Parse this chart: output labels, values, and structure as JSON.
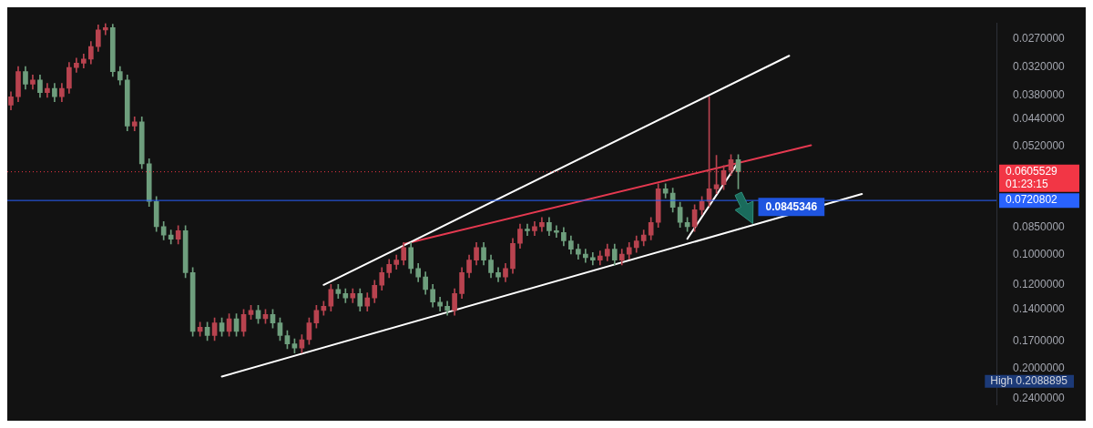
{
  "chart_data": {
    "type": "candlestick",
    "log": "y",
    "tick_labels": "y",
    "grid": false,
    "legend": false,
    "categories": [
      null,
      null,
      null,
      null,
      null,
      null,
      null,
      null,
      null,
      null,
      null,
      null,
      null,
      null,
      null,
      null,
      null,
      null,
      null,
      null,
      null,
      null,
      null,
      null,
      null,
      null,
      null,
      null,
      null,
      null,
      null,
      null,
      null,
      null,
      null,
      null,
      null,
      null,
      null,
      null,
      null,
      null,
      null,
      null,
      null,
      null,
      null,
      null,
      null,
      null,
      null,
      null,
      null,
      null,
      null,
      null,
      null,
      null,
      null,
      null,
      null,
      null,
      null,
      null,
      null,
      null,
      null,
      null,
      null,
      null,
      null,
      null,
      null,
      null,
      null,
      null,
      null,
      null,
      null,
      null,
      null,
      null,
      null,
      null,
      null,
      null,
      null,
      null,
      null,
      null,
      null,
      null,
      null,
      null,
      null,
      null,
      null,
      null,
      null,
      null,
      null,
      null,
      null,
      null,
      null,
      null,
      null,
      null,
      null,
      null,
      null,
      null,
      null,
      null,
      null,
      null,
      null,
      null,
      null,
      null,
      null,
      null,
      null,
      null,
      null,
      null,
      null,
      null,
      null,
      null,
      null,
      null,
      null,
      null,
      null,
      null
    ],
    "ylim": [
      0.25,
      0.0245
    ],
    "yticks": [
      {
        "value": 0.027,
        "label": "0.0270000"
      },
      {
        "value": 0.032,
        "label": "0.0320000"
      },
      {
        "value": 0.038,
        "label": "0.0380000"
      },
      {
        "value": 0.044,
        "label": "0.0440000"
      },
      {
        "value": 0.052,
        "label": "0.0520000"
      },
      {
        "value": 0.085,
        "label": "0.0850000"
      },
      {
        "value": 0.1,
        "label": "0.1000000"
      },
      {
        "value": 0.12,
        "label": "0.1200000"
      },
      {
        "value": 0.14,
        "label": "0.1400000"
      },
      {
        "value": 0.17,
        "label": "0.1700000"
      },
      {
        "value": 0.2,
        "label": "0.2000000"
      },
      {
        "value": 0.24,
        "label": "0.2400000"
      }
    ],
    "ohlc": [
      [
        0.04037,
        0.04158,
        0.03722,
        0.03837
      ],
      [
        0.03837,
        0.03952,
        0.03194,
        0.03293
      ],
      [
        0.03293,
        0.03662,
        0.03194,
        0.03555
      ],
      [
        0.03555,
        0.03662,
        0.03361,
        0.03465
      ],
      [
        0.03465,
        0.03853,
        0.03361,
        0.03741
      ],
      [
        0.03741,
        0.03853,
        0.03537,
        0.03646
      ],
      [
        0.03646,
        0.03952,
        0.03537,
        0.03837
      ],
      [
        0.03837,
        0.03952,
        0.03537,
        0.03646
      ],
      [
        0.03646,
        0.03755,
        0.03115,
        0.03211
      ],
      [
        0.03211,
        0.03307,
        0.03036,
        0.0313
      ],
      [
        0.0313,
        0.03224,
        0.02959,
        0.03051
      ],
      [
        0.03051,
        0.03143,
        0.02742,
        0.02827
      ],
      [
        0.02827,
        0.02912,
        0.02479,
        0.02556
      ],
      [
        0.02556,
        0.02633,
        0.0246,
        0.0252
      ],
      [
        0.0252,
        0.03392,
        0.0247,
        0.03293
      ],
      [
        0.03293,
        0.03569,
        0.03194,
        0.03465
      ],
      [
        0.03465,
        0.04723,
        0.03361,
        0.04585
      ],
      [
        0.04585,
        0.04723,
        0.04336,
        0.0447
      ],
      [
        0.0447,
        0.0594,
        0.04336,
        0.05767
      ],
      [
        0.05767,
        0.07471,
        0.05594,
        0.07253
      ],
      [
        0.07253,
        0.08702,
        0.07035,
        0.08449
      ],
      [
        0.08449,
        0.09159,
        0.08196,
        0.08892
      ],
      [
        0.08892,
        0.09394,
        0.08625,
        0.0912
      ],
      [
        0.0912,
        0.09394,
        0.08407,
        0.08667
      ],
      [
        0.08667,
        0.1152,
        0.08407,
        0.1118
      ],
      [
        0.1118,
        0.1645,
        0.1084,
        0.1597
      ],
      [
        0.1597,
        0.1645,
        0.151,
        0.1557
      ],
      [
        0.1557,
        0.1688,
        0.151,
        0.1639
      ],
      [
        0.1639,
        0.1688,
        0.1472,
        0.1518
      ],
      [
        0.1518,
        0.1645,
        0.1472,
        0.1597
      ],
      [
        0.1597,
        0.1645,
        0.1435,
        0.1479
      ],
      [
        0.1479,
        0.1645,
        0.1435,
        0.1597
      ],
      [
        0.1597,
        0.1645,
        0.1399,
        0.1442
      ],
      [
        0.1442,
        0.1485,
        0.1364,
        0.1406
      ],
      [
        0.1406,
        0.1523,
        0.1364,
        0.1479
      ],
      [
        0.1479,
        0.1523,
        0.1399,
        0.1442
      ],
      [
        0.1442,
        0.1564,
        0.1399,
        0.1518
      ],
      [
        0.1518,
        0.1688,
        0.1472,
        0.1639
      ],
      [
        0.1639,
        0.1776,
        0.159,
        0.1724
      ],
      [
        0.1724,
        0.1821,
        0.1672,
        0.1768
      ],
      [
        0.1768,
        0.1821,
        0.163,
        0.168
      ],
      [
        0.168,
        0.173,
        0.1472,
        0.1518
      ],
      [
        0.1518,
        0.1564,
        0.1364,
        0.1406
      ],
      [
        0.1406,
        0.1448,
        0.133,
        0.1371
      ],
      [
        0.1371,
        0.1412,
        0.1201,
        0.1238
      ],
      [
        0.1238,
        0.1308,
        0.1201,
        0.127
      ],
      [
        0.127,
        0.1342,
        0.1232,
        0.1303
      ],
      [
        0.1303,
        0.1342,
        0.1232,
        0.127
      ],
      [
        0.127,
        0.1412,
        0.1232,
        0.1371
      ],
      [
        0.1371,
        0.1412,
        0.1264,
        0.1303
      ],
      [
        0.1303,
        0.1342,
        0.1171,
        0.1207
      ],
      [
        0.1207,
        0.1243,
        0.1084,
        0.1118
      ],
      [
        0.1118,
        0.1152,
        0.1031,
        0.1063
      ],
      [
        0.1063,
        0.1095,
        0.1005,
        0.1036
      ],
      [
        0.1036,
        0.1067,
        0.09309,
        0.09597
      ],
      [
        0.09597,
        0.1123,
        0.09309,
        0.109
      ],
      [
        0.109,
        0.1181,
        0.1057,
        0.1147
      ],
      [
        0.1147,
        0.1275,
        0.1113,
        0.1238
      ],
      [
        0.1238,
        0.1377,
        0.1201,
        0.1337
      ],
      [
        0.1337,
        0.1412,
        0.1297,
        0.1371
      ],
      [
        0.1371,
        0.1448,
        0.133,
        0.1406
      ],
      [
        0.1406,
        0.1448,
        0.1232,
        0.127
      ],
      [
        0.127,
        0.1308,
        0.1084,
        0.1118
      ],
      [
        0.1118,
        0.1152,
        0.1005,
        0.1036
      ],
      [
        0.1036,
        0.1067,
        0.09309,
        0.09597
      ],
      [
        0.09597,
        0.1067,
        0.09309,
        0.1036
      ],
      [
        0.1036,
        0.1152,
        0.1005,
        0.1118
      ],
      [
        0.1118,
        0.1181,
        0.1084,
        0.1147
      ],
      [
        0.1147,
        0.1181,
        0.1057,
        0.109
      ],
      [
        0.109,
        0.1123,
        0.09075,
        0.09356
      ],
      [
        0.09356,
        0.09637,
        0.08322,
        0.08579
      ],
      [
        0.08579,
        0.08927,
        0.08322,
        0.08667
      ],
      [
        0.08667,
        0.08927,
        0.08196,
        0.08449
      ],
      [
        0.08449,
        0.08702,
        0.0799,
        0.08237
      ],
      [
        0.08237,
        0.08927,
        0.0799,
        0.08667
      ],
      [
        0.08667,
        0.09019,
        0.08407,
        0.08756
      ],
      [
        0.08756,
        0.0949,
        0.08493,
        0.09214
      ],
      [
        0.09214,
        0.09987,
        0.08938,
        0.09696
      ],
      [
        0.09696,
        0.103,
        0.09405,
        0.09996
      ],
      [
        0.09996,
        0.1051,
        0.09696,
        0.102
      ],
      [
        0.102,
        0.1067,
        0.09894,
        0.1036
      ],
      [
        0.1036,
        0.1067,
        0.09797,
        0.101
      ],
      [
        0.101,
        0.104,
        0.09405,
        0.09696
      ],
      [
        0.09696,
        0.1067,
        0.09405,
        0.1036
      ],
      [
        0.1036,
        0.1067,
        0.09696,
        0.09996
      ],
      [
        0.09996,
        0.103,
        0.09309,
        0.09597
      ],
      [
        0.09597,
        0.09885,
        0.08938,
        0.09214
      ],
      [
        0.09214,
        0.0949,
        0.08625,
        0.08892
      ],
      [
        0.08892,
        0.09159,
        0.0799,
        0.08237
      ],
      [
        0.08237,
        0.08484,
        0.06516,
        0.06718
      ],
      [
        0.06718,
        0.071,
        0.06516,
        0.06893
      ],
      [
        0.06893,
        0.0774,
        0.06686,
        0.07515
      ],
      [
        0.07515,
        0.08484,
        0.0729,
        0.08237
      ],
      [
        0.08237,
        0.08702,
        0.0799,
        0.08449
      ],
      [
        0.08449,
        0.08702,
        0.07402,
        0.07631
      ],
      [
        0.07631,
        0.0786,
        0.07035,
        0.07253
      ],
      [
        0.07253,
        0.07471,
        0.03837,
        0.06718
      ],
      [
        0.06718,
        0.06919,
        0.0548,
        0.06546
      ],
      [
        0.06546,
        0.06742,
        0.05829,
        0.06009
      ],
      [
        0.06009,
        0.06189,
        0.05458,
        0.05627
      ],
      [
        0.05627,
        0.06718,
        0.05458,
        0.06055
      ],
      null,
      null,
      null,
      null,
      null,
      null,
      null,
      null,
      null,
      null,
      null,
      null,
      null,
      null,
      null,
      null,
      null,
      null,
      null,
      null,
      null,
      null,
      null,
      null,
      null,
      null,
      null,
      null,
      null,
      null,
      null,
      null,
      null,
      null,
      null
    ],
    "colors": [
      "#b8434f",
      "#b8434f",
      "#6e9e7d",
      "#b8434f",
      "#6e9e7d",
      "#b8434f",
      "#6e9e7d",
      "#b8434f",
      "#b8434f",
      "#b8434f",
      "#b8434f",
      "#b8434f",
      "#b8434f",
      "#b8434f",
      "#6e9e7d",
      "#6e9e7d",
      "#6e9e7d",
      "#b8434f",
      "#6e9e7d",
      "#6e9e7d",
      "#6e9e7d",
      "#6e9e7d",
      "#6e9e7d",
      "#b8434f",
      "#6e9e7d",
      "#6e9e7d",
      "#b8434f",
      "#6e9e7d",
      "#b8434f",
      "#6e9e7d",
      "#b8434f",
      "#6e9e7d",
      "#b8434f",
      "#b8434f",
      "#6e9e7d",
      "#b8434f",
      "#6e9e7d",
      "#6e9e7d",
      "#6e9e7d",
      "#6e9e7d",
      "#b8434f",
      "#b8434f",
      "#b8434f",
      "#b8434f",
      "#b8434f",
      "#6e9e7d",
      "#6e9e7d",
      "#b8434f",
      "#6e9e7d",
      "#b8434f",
      "#b8434f",
      "#b8434f",
      "#b8434f",
      "#b8434f",
      "#b8434f",
      "#6e9e7d",
      "#6e9e7d",
      "#6e9e7d",
      "#6e9e7d",
      "#6e9e7d",
      "#6e9e7d",
      "#b8434f",
      "#b8434f",
      "#b8434f",
      "#b8434f",
      "#6e9e7d",
      "#6e9e7d",
      "#6e9e7d",
      "#b8434f",
      "#b8434f",
      "#b8434f",
      "#6e9e7d",
      "#b8434f",
      "#b8434f",
      "#6e9e7d",
      "#6e9e7d",
      "#6e9e7d",
      "#6e9e7d",
      "#6e9e7d",
      "#6e9e7d",
      "#6e9e7d",
      "#b8434f",
      "#b8434f",
      "#6e9e7d",
      "#b8434f",
      "#b8434f",
      "#b8434f",
      "#b8434f",
      "#b8434f",
      "#b8434f",
      "#6e9e7d",
      "#6e9e7d",
      "#6e9e7d",
      "#6e9e7d",
      "#b8434f",
      "#b8434f",
      "#b8434f",
      "#b8434f",
      "#b8434f",
      "#b8434f",
      "#6e9e7d",
      null,
      null,
      null,
      null,
      null,
      null,
      null,
      null,
      null,
      null,
      null,
      null,
      null,
      null,
      null,
      null,
      null,
      null,
      null,
      null,
      null,
      null,
      null,
      null,
      null,
      null,
      null,
      null,
      null,
      null,
      null,
      null,
      null,
      null,
      null
    ],
    "series": [
      {
        "type": "line",
        "color": "#ffffff",
        "values": [
          null,
          null,
          null,
          null,
          null,
          null,
          null,
          null,
          null,
          null,
          null,
          null,
          null,
          null,
          null,
          null,
          null,
          null,
          null,
          null,
          null,
          null,
          null,
          null,
          null,
          null,
          null,
          null,
          null,
          0.2102,
          null,
          null,
          null,
          null,
          null,
          null,
          null,
          null,
          null,
          null,
          null,
          null,
          null,
          null,
          null,
          null,
          null,
          null,
          null,
          null,
          null,
          null,
          null,
          null,
          null,
          null,
          null,
          null,
          null,
          null,
          null,
          null,
          null,
          null,
          null,
          null,
          null,
          null,
          null,
          null,
          null,
          null,
          null,
          null,
          null,
          null,
          null,
          null,
          null,
          null,
          null,
          null,
          null,
          null,
          null,
          null,
          null,
          null,
          null,
          null,
          null,
          null,
          null,
          null,
          null,
          null,
          null,
          null,
          null,
          null,
          null,
          null,
          null,
          null,
          null,
          null,
          null,
          null,
          null,
          null,
          null,
          null,
          null,
          null,
          null,
          null,
          null,
          0.06931,
          null,
          null,
          null,
          null,
          null,
          null,
          null,
          null,
          null,
          null,
          null,
          null,
          null,
          null,
          null,
          null,
          null,
          null
        ]
      },
      {
        "type": "line",
        "color": "#ffffff",
        "values": [
          null,
          null,
          null,
          null,
          null,
          null,
          null,
          null,
          null,
          null,
          null,
          null,
          null,
          null,
          null,
          null,
          null,
          null,
          null,
          null,
          null,
          null,
          null,
          null,
          null,
          null,
          null,
          null,
          null,
          null,
          null,
          null,
          null,
          null,
          null,
          null,
          null,
          null,
          null,
          null,
          null,
          null,
          null,
          0.1204,
          null,
          null,
          null,
          null,
          null,
          null,
          null,
          null,
          null,
          null,
          null,
          null,
          null,
          null,
          null,
          null,
          null,
          null,
          null,
          null,
          null,
          null,
          null,
          null,
          null,
          null,
          null,
          null,
          null,
          null,
          null,
          null,
          null,
          null,
          null,
          null,
          null,
          null,
          null,
          null,
          null,
          null,
          null,
          null,
          null,
          null,
          null,
          null,
          null,
          null,
          null,
          null,
          null,
          null,
          null,
          null,
          null,
          null,
          null,
          null,
          null,
          null,
          null,
          0.02991,
          null,
          null,
          null,
          null,
          null,
          null,
          null,
          null,
          null,
          null,
          null,
          null,
          null,
          null,
          null,
          null,
          null,
          null,
          null,
          null,
          null,
          null,
          null,
          null,
          null,
          null,
          null,
          null
        ]
      },
      {
        "type": "line",
        "color": "#e53950",
        "values": [
          null,
          null,
          null,
          null,
          null,
          null,
          null,
          null,
          null,
          null,
          null,
          null,
          null,
          null,
          null,
          null,
          null,
          null,
          null,
          null,
          null,
          null,
          null,
          null,
          null,
          null,
          null,
          null,
          null,
          null,
          null,
          null,
          null,
          null,
          null,
          null,
          null,
          null,
          null,
          null,
          null,
          null,
          null,
          null,
          null,
          null,
          null,
          null,
          null,
          null,
          null,
          null,
          null,
          null,
          0.09393,
          null,
          null,
          null,
          null,
          null,
          null,
          null,
          null,
          null,
          null,
          null,
          null,
          null,
          null,
          null,
          null,
          null,
          null,
          null,
          null,
          null,
          null,
          null,
          null,
          null,
          null,
          null,
          null,
          null,
          null,
          null,
          null,
          null,
          null,
          null,
          null,
          null,
          null,
          null,
          null,
          null,
          null,
          null,
          null,
          null,
          null,
          null,
          null,
          null,
          null,
          null,
          null,
          null,
          null,
          null,
          0.05155,
          null,
          null,
          null,
          null,
          null,
          null,
          null,
          null,
          null,
          null,
          null,
          null,
          null,
          null,
          null,
          null,
          null,
          null,
          null,
          null,
          null,
          null,
          null,
          null,
          null
        ]
      },
      {
        "type": "line",
        "color": "#ffffff",
        "values": [
          null,
          null,
          null,
          null,
          null,
          null,
          null,
          null,
          null,
          null,
          null,
          null,
          null,
          null,
          null,
          null,
          null,
          null,
          null,
          null,
          null,
          null,
          null,
          null,
          null,
          null,
          null,
          null,
          null,
          null,
          null,
          null,
          null,
          null,
          null,
          null,
          null,
          null,
          null,
          null,
          null,
          null,
          null,
          null,
          null,
          null,
          null,
          null,
          null,
          null,
          null,
          null,
          null,
          null,
          null,
          null,
          null,
          null,
          null,
          null,
          null,
          null,
          null,
          null,
          null,
          null,
          null,
          null,
          null,
          null,
          null,
          null,
          null,
          null,
          null,
          null,
          null,
          null,
          null,
          null,
          null,
          null,
          null,
          null,
          null,
          null,
          null,
          null,
          null,
          null,
          null,
          null,
          null,
          0.09097,
          null,
          null,
          null,
          null,
          null,
          null,
          0.05714,
          null,
          null,
          null,
          null,
          null,
          null,
          null,
          null,
          null,
          null,
          null,
          null,
          null,
          null,
          null,
          null,
          null,
          null,
          null,
          null,
          null,
          null,
          null,
          null,
          null,
          null,
          null,
          null,
          null,
          null,
          null,
          null,
          null,
          null,
          null
        ]
      }
    ],
    "ref_lines": [
      {
        "axis": "y",
        "value": 0.0605529,
        "label": "0.0605529\n01:23:15",
        "color": "#f23645",
        "line_style": "dotted"
      },
      {
        "axis": "y",
        "value": 0.0720802,
        "label": "0.0720802",
        "color": "#2962ff",
        "line_style": "solid"
      }
    ],
    "annotations": [
      "0.0845346",
      "High 0.2088895"
    ]
  }
}
